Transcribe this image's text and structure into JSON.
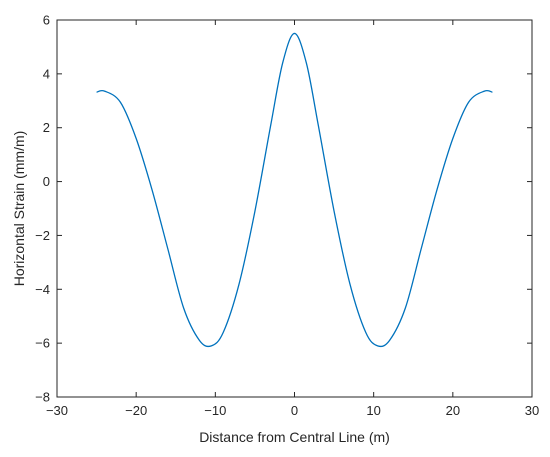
{
  "chart_data": {
    "type": "line",
    "title": "",
    "xlabel": "Distance from Central Line (m)",
    "ylabel": "Horizontal Strain (mm/m)",
    "xlim": [
      -30,
      30
    ],
    "ylim": [
      -8,
      6
    ],
    "xticks": [
      -30,
      -20,
      -10,
      0,
      10,
      20,
      30
    ],
    "yticks": [
      -8,
      -6,
      -4,
      -2,
      0,
      2,
      4,
      6
    ],
    "xtick_labels": [
      "−30",
      "−20",
      "−10",
      "0",
      "10",
      "20",
      "30"
    ],
    "ytick_labels": [
      "−8",
      "−6",
      "−4",
      "−2",
      "0",
      "2",
      "4",
      "6"
    ],
    "grid": false,
    "line_color": "#0072BD",
    "axis_color": "#262626",
    "series": [
      {
        "x": [
          -25,
          -24,
          -22,
          -20,
          -18,
          -16,
          -14,
          -12,
          -10.5,
          -9,
          -7,
          -5,
          -3,
          -1.5,
          0,
          1.5,
          3,
          5,
          7,
          9,
          10.5,
          12,
          14,
          16,
          18,
          20,
          22,
          24,
          25
        ],
        "values": [
          3.32,
          3.36,
          2.95,
          1.6,
          -0.3,
          -2.5,
          -4.7,
          -5.9,
          -6.1,
          -5.6,
          -3.8,
          -1.1,
          2.1,
          4.4,
          5.5,
          4.4,
          2.1,
          -1.1,
          -3.8,
          -5.6,
          -6.1,
          -5.9,
          -4.7,
          -2.5,
          -0.3,
          1.6,
          2.95,
          3.36,
          3.32
        ]
      }
    ]
  }
}
